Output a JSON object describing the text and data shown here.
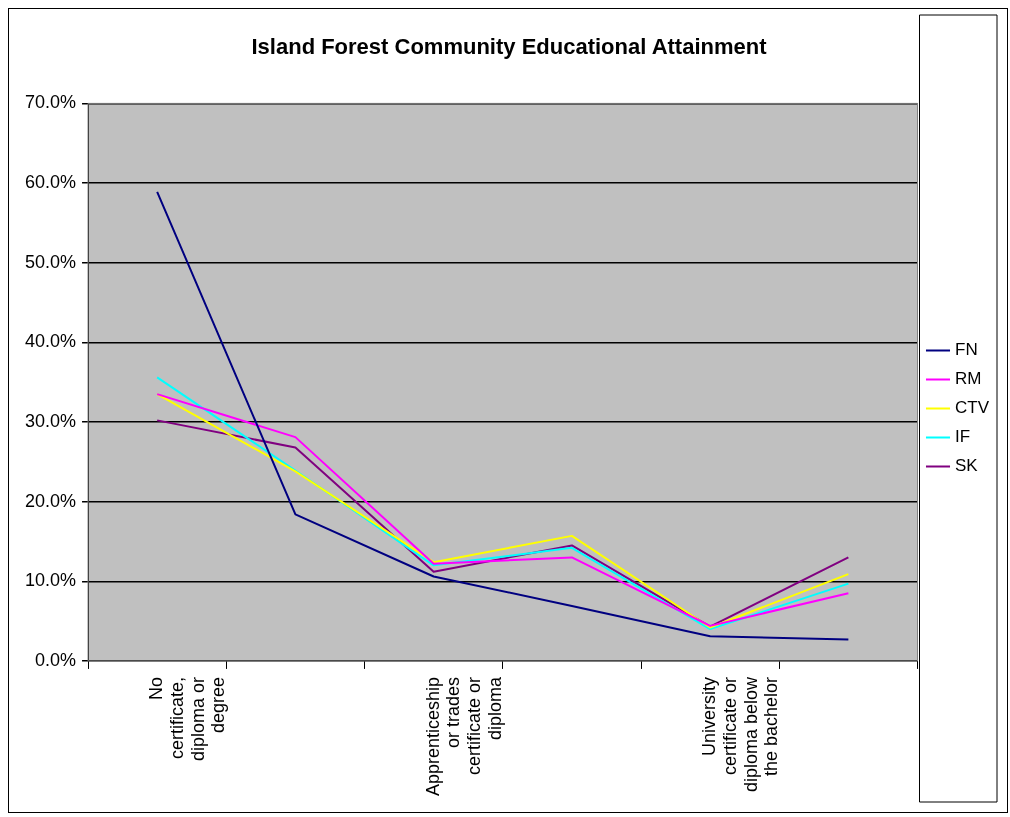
{
  "chart_data": {
    "type": "line",
    "title": "Island Forest Community Educational Attainment",
    "categories": [
      "No certificate, diploma or degree",
      null,
      "Apprenticeship or trades certificate or diploma",
      null,
      "University certificate or diploma below the bachelor",
      null
    ],
    "series": [
      {
        "name": "FN",
        "color": "#000080",
        "values": [
          58.9,
          18.4,
          10.6,
          6.9,
          3.1,
          2.7
        ]
      },
      {
        "name": "RM",
        "color": "#ff00ff",
        "values": [
          33.5,
          28.1,
          12.2,
          13.0,
          4.4,
          8.5
        ]
      },
      {
        "name": "CTV",
        "color": "#ffff00",
        "values": [
          33.5,
          23.8,
          12.4,
          15.7,
          4.2,
          10.9
        ]
      },
      {
        "name": "IF",
        "color": "#00ffff",
        "values": [
          35.6,
          23.9,
          12.0,
          14.2,
          4.0,
          9.7
        ]
      },
      {
        "name": "SK",
        "color": "#800080",
        "values": [
          30.2,
          26.8,
          11.2,
          14.5,
          4.3,
          13.0
        ]
      }
    ],
    "ylim": [
      0,
      70
    ],
    "yticks": [
      {
        "value": 0,
        "label": "0.0%"
      },
      {
        "value": 10,
        "label": "10.0%"
      },
      {
        "value": 20,
        "label": "20.0%"
      },
      {
        "value": 30,
        "label": "30.0%"
      },
      {
        "value": 40,
        "label": "40.0%"
      },
      {
        "value": 50,
        "label": "50.0%"
      },
      {
        "value": 60,
        "label": "60.0%"
      },
      {
        "value": 70,
        "label": "70.0%"
      }
    ],
    "grid": "y",
    "legend": "right",
    "marker": "none",
    "line_style": "solid"
  }
}
